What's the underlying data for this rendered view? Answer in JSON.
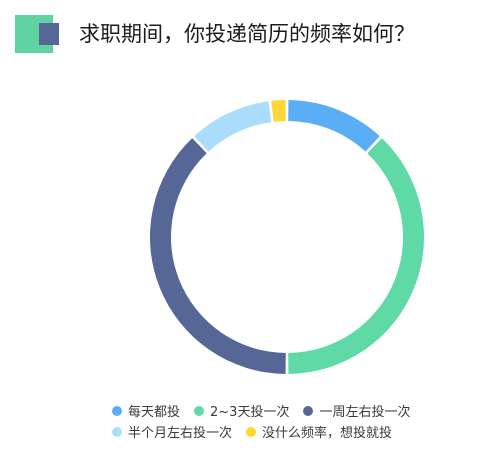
{
  "title": "求职期间，你投递简历的频率如何？",
  "chart_data": {
    "type": "pie",
    "variant": "donut",
    "title": "求职期间，你投递简历的频率如何？",
    "legend_position": "bottom",
    "slices": [
      {
        "label": "每天都投",
        "value": 12,
        "color": "#5aaef5"
      },
      {
        "label": "2~3天投一次",
        "value": 38,
        "color": "#5fd9a5"
      },
      {
        "label": "一周左右投一次",
        "value": 38,
        "color": "#566797"
      },
      {
        "label": "半个月左右投一次",
        "value": 10,
        "color": "#a9ddfb"
      },
      {
        "label": "没什么频率，想投就投",
        "value": 2,
        "color": "#ffd633"
      }
    ]
  }
}
